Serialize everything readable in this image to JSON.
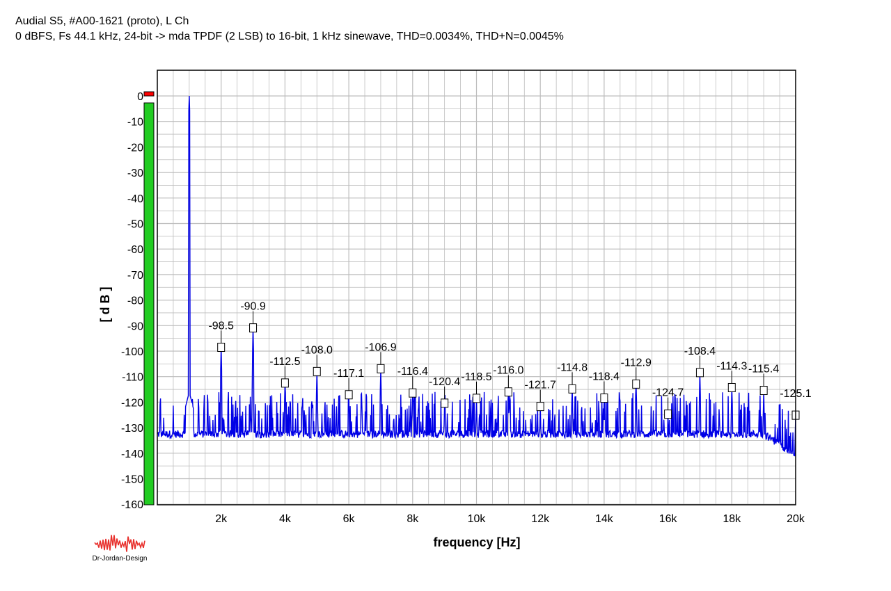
{
  "title": "Audial S5, #A00-1621 (proto), L Ch",
  "subtitle": "0 dBFS, Fs 44.1 kHz, 24-bit -> mda TPDF (2 LSB) to 16-bit, 1 kHz sinewave, THD=0.0034%, THD+N=0.0045%",
  "logo_text": "Dr-Jordan-Design",
  "colors": {
    "trace": "#0000e6",
    "grid": "#bdbdbd",
    "meter_green": "#22cc22",
    "meter_red": "#ff0000"
  },
  "chart_data": {
    "type": "line",
    "title": "Audial S5, #A00-1621 (proto), L Ch",
    "xlabel": "frequency [Hz]",
    "ylabel": "[ d B ]",
    "xlim": [
      0,
      20000
    ],
    "ylim": [
      -160,
      5
    ],
    "x_ticks": [
      {
        "value": 2000,
        "label": "2k"
      },
      {
        "value": 4000,
        "label": "4k"
      },
      {
        "value": 6000,
        "label": "6k"
      },
      {
        "value": 8000,
        "label": "8k"
      },
      {
        "value": 10000,
        "label": "10k"
      },
      {
        "value": 12000,
        "label": "12k"
      },
      {
        "value": 14000,
        "label": "14k"
      },
      {
        "value": 16000,
        "label": "16k"
      },
      {
        "value": 18000,
        "label": "18k"
      },
      {
        "value": 20000,
        "label": "20k"
      }
    ],
    "y_ticks": [
      {
        "value": 0,
        "label": "0"
      },
      {
        "value": -10,
        "label": "-10"
      },
      {
        "value": -20,
        "label": "-20"
      },
      {
        "value": -30,
        "label": "-30"
      },
      {
        "value": -40,
        "label": "-40"
      },
      {
        "value": -50,
        "label": "-50"
      },
      {
        "value": -60,
        "label": "-60"
      },
      {
        "value": -70,
        "label": "-70"
      },
      {
        "value": -80,
        "label": "-80"
      },
      {
        "value": -90,
        "label": "-90"
      },
      {
        "value": -100,
        "label": "-100"
      },
      {
        "value": -110,
        "label": "-110"
      },
      {
        "value": -120,
        "label": "-120"
      },
      {
        "value": -130,
        "label": "-130"
      },
      {
        "value": -140,
        "label": "-140"
      },
      {
        "value": -150,
        "label": "-150"
      },
      {
        "value": -160,
        "label": "-160"
      }
    ],
    "grid": true,
    "fundamental": {
      "x": 1000,
      "y": 0
    },
    "harmonics": [
      {
        "x": 2000,
        "y": -98.5,
        "label": "-98.5"
      },
      {
        "x": 3000,
        "y": -90.9,
        "label": "-90.9"
      },
      {
        "x": 4000,
        "y": -112.5,
        "label": "-112.5"
      },
      {
        "x": 5000,
        "y": -108.0,
        "label": "-108.0"
      },
      {
        "x": 6000,
        "y": -117.1,
        "label": "-117.1"
      },
      {
        "x": 7000,
        "y": -106.9,
        "label": "-106.9"
      },
      {
        "x": 8000,
        "y": -116.4,
        "label": "-116.4"
      },
      {
        "x": 9000,
        "y": -120.4,
        "label": "-120.4"
      },
      {
        "x": 10000,
        "y": -118.5,
        "label": "-118.5"
      },
      {
        "x": 11000,
        "y": -116.0,
        "label": "-116.0"
      },
      {
        "x": 12000,
        "y": -121.7,
        "label": "-121.7"
      },
      {
        "x": 13000,
        "y": -114.8,
        "label": "-114.8"
      },
      {
        "x": 14000,
        "y": -118.4,
        "label": "-118.4"
      },
      {
        "x": 15000,
        "y": -112.9,
        "label": "-112.9"
      },
      {
        "x": 16000,
        "y": -124.7,
        "label": "-124.7"
      },
      {
        "x": 17000,
        "y": -108.4,
        "label": "-108.4"
      },
      {
        "x": 18000,
        "y": -114.3,
        "label": "-114.3"
      },
      {
        "x": 19000,
        "y": -115.4,
        "label": "-115.4"
      },
      {
        "x": 20000,
        "y": -125.1,
        "label": "-125.1"
      }
    ],
    "noise_floor_db": -132,
    "level_meter_db": 0
  }
}
